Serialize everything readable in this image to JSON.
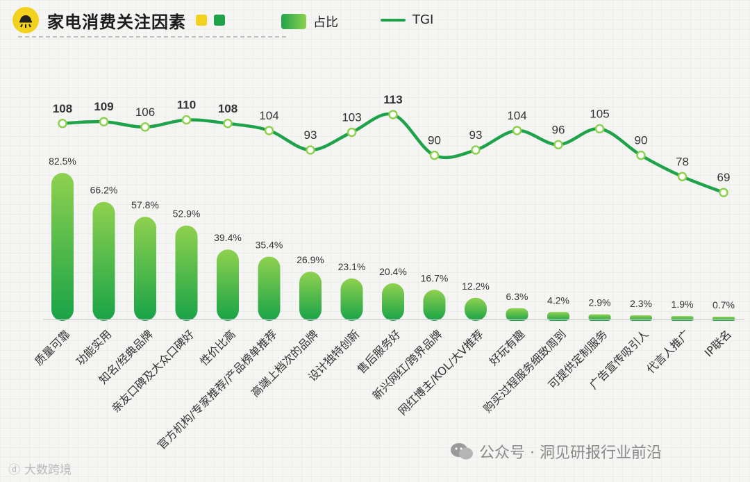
{
  "header": {
    "title": "家电消费关注因素"
  },
  "legend": {
    "bar_label": "占比",
    "line_label": "TGI"
  },
  "colors": {
    "accent_green": "#1fa34a",
    "light_green": "#8fd14f",
    "accent_yellow": "#f2d21e"
  },
  "watermark": {
    "right": "公众号 · 洞见研报行业前沿",
    "left": "大数跨境"
  },
  "chart_data": {
    "type": "bar",
    "title": "家电消费关注因素",
    "categories": [
      "质量可靠",
      "功能实用",
      "知名/经典品牌",
      "亲友口碑及大众口碑好",
      "性价比高",
      "官方机构/专家推荐/产品榜单推荐",
      "高端上档次的品牌",
      "设计独特创新",
      "售后服务好",
      "新兴网红/跨界品牌",
      "网红博主/KOL/大V推荐",
      "好玩有趣",
      "购买过程服务细致周到",
      "可提供定制服务",
      "广告宣传吸引人",
      "代言人推广",
      "IP联名"
    ],
    "series": [
      {
        "name": "占比",
        "type": "bar",
        "values": [
          82.5,
          66.2,
          57.8,
          52.9,
          39.4,
          35.4,
          26.9,
          23.1,
          20.4,
          16.7,
          12.2,
          6.3,
          4.2,
          2.9,
          2.3,
          1.9,
          0.7
        ],
        "labels": [
          "82.5%",
          "66.2%",
          "57.8%",
          "52.9%",
          "39.4%",
          "35.4%",
          "26.9%",
          "23.1%",
          "20.4%",
          "16.7%",
          "12.2%",
          "6.3%",
          "4.2%",
          "2.9%",
          "2.3%",
          "1.9%",
          "0.7%"
        ]
      },
      {
        "name": "TGI",
        "type": "line",
        "values": [
          108,
          109,
          106,
          110,
          108,
          104,
          93,
          103,
          113,
          90,
          93,
          104,
          96,
          105,
          90,
          78,
          69
        ]
      }
    ],
    "bold_tgi": [
      108,
      109,
      110,
      108,
      113
    ]
  }
}
